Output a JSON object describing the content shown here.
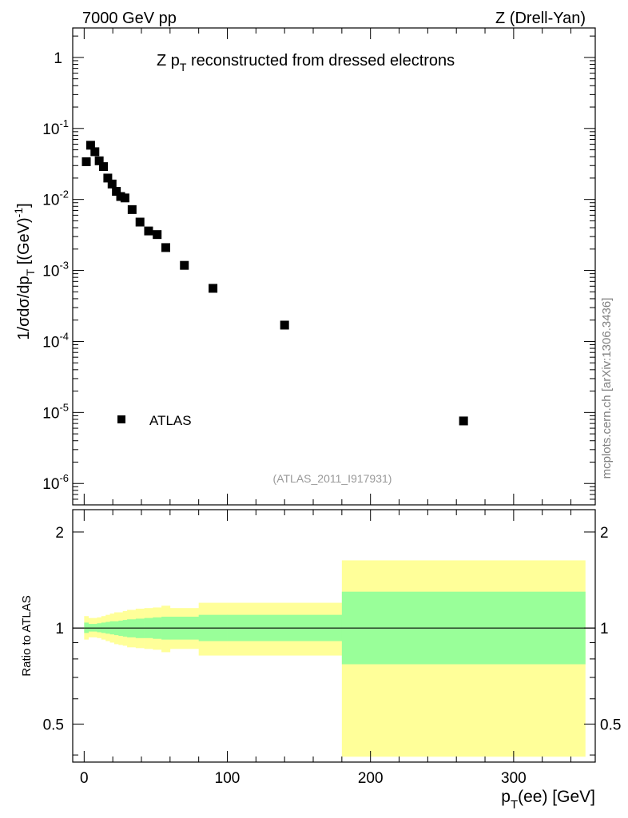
{
  "header": {
    "left": "7000 GeV pp",
    "right": "Z (Drell-Yan)"
  },
  "watermark": "mcplots.cern.ch [arXiv:1306.3436]",
  "chart_data": [
    {
      "type": "scatter",
      "panel": "main",
      "title": "Z p_T reconstructed from dressed electrons",
      "title_parts": {
        "a": "Z p",
        "sub": "T",
        "b": " reconstructed from dressed electrons"
      },
      "ylabel": "1/σdσ/dp_T [(GeV)^-1]",
      "ylabel_parts": {
        "a": "1/σdσ/dp",
        "sub": "T",
        "b": " [(GeV)",
        "sup": "-1",
        "c": "]"
      },
      "yscale": "log",
      "ylim": [
        5e-07,
        2.6
      ],
      "xlim": [
        -8,
        357
      ],
      "ytick_exponents": [
        -6,
        -5,
        -4,
        -3,
        -2,
        -1
      ],
      "ytick_labels": [
        "10",
        "10",
        "10",
        "10",
        "10",
        "10",
        "1"
      ],
      "ytick_label_exps": [
        "-6",
        "-5",
        "-4",
        "-3",
        "-2",
        "-1",
        ""
      ],
      "legend": {
        "label": "ATLAS",
        "position": "lower-left"
      },
      "analysis_tag": "(ATLAS_2011_I917931)",
      "series": [
        {
          "name": "ATLAS",
          "marker": "square",
          "color": "#000000",
          "x": [
            1.5,
            4.5,
            7.5,
            10.5,
            13.5,
            16.5,
            19.5,
            22.5,
            25.5,
            28.5,
            33.5,
            39,
            45,
            51,
            57,
            70,
            90,
            140,
            265
          ],
          "y": [
            0.034,
            0.058,
            0.047,
            0.035,
            0.029,
            0.02,
            0.0165,
            0.013,
            0.011,
            0.0105,
            0.0072,
            0.0048,
            0.0036,
            0.0032,
            0.0021,
            0.00118,
            0.00056,
            0.00017,
            7.6e-06
          ]
        }
      ]
    },
    {
      "type": "area",
      "panel": "ratio",
      "ylabel": "Ratio to ATLAS",
      "xlabel": "p_T(ee) [GeV]",
      "xlabel_parts": {
        "a": "p",
        "sub": "T",
        "b": "(ee) [GeV]"
      },
      "xlim": [
        -8,
        357
      ],
      "ylim": [
        0.38,
        2.35
      ],
      "yscale": "log",
      "yticks": [
        0.5,
        1,
        2
      ],
      "ytick_labels": [
        "0.5",
        "1",
        "2"
      ],
      "xticks": [
        0,
        100,
        200,
        300
      ],
      "xtick_labels": [
        "0",
        "100",
        "200",
        "300"
      ],
      "reference_line": 1,
      "colors": {
        "outer": "#ffff99",
        "inner": "#99ff99"
      },
      "bands": {
        "edges": [
          0,
          3,
          6,
          9,
          12,
          15,
          18,
          21,
          24,
          27,
          30,
          36,
          42,
          48,
          54,
          60,
          80,
          100,
          180,
          350
        ],
        "inner_lo": [
          0.965,
          0.975,
          0.975,
          0.97,
          0.965,
          0.96,
          0.955,
          0.95,
          0.945,
          0.94,
          0.935,
          0.93,
          0.93,
          0.925,
          0.92,
          0.92,
          0.91,
          0.91,
          0.77
        ],
        "inner_hi": [
          1.04,
          1.03,
          1.03,
          1.035,
          1.04,
          1.045,
          1.05,
          1.05,
          1.055,
          1.06,
          1.065,
          1.07,
          1.075,
          1.08,
          1.085,
          1.085,
          1.1,
          1.1,
          1.3
        ],
        "outer_lo": [
          0.92,
          0.935,
          0.935,
          0.93,
          0.92,
          0.91,
          0.9,
          0.89,
          0.885,
          0.88,
          0.87,
          0.865,
          0.86,
          0.855,
          0.84,
          0.86,
          0.82,
          0.82,
          0.395
        ],
        "outer_hi": [
          1.09,
          1.075,
          1.075,
          1.08,
          1.09,
          1.1,
          1.11,
          1.12,
          1.12,
          1.13,
          1.14,
          1.15,
          1.155,
          1.16,
          1.175,
          1.155,
          1.2,
          1.2,
          1.63
        ]
      }
    }
  ]
}
